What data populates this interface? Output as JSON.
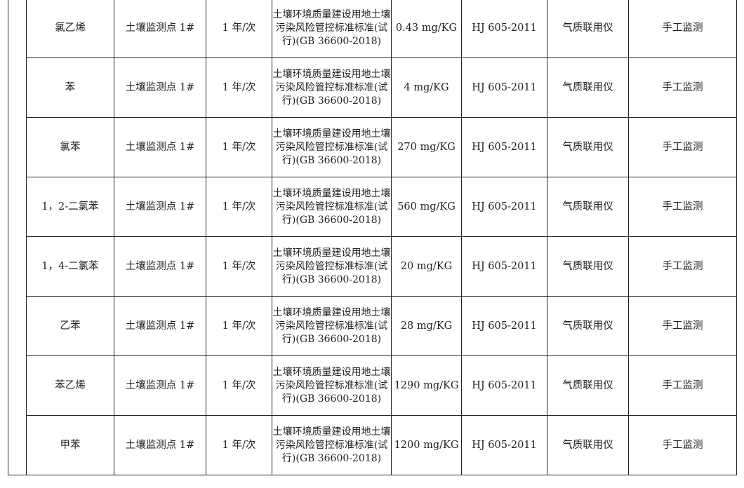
{
  "table": {
    "rows": [
      {
        "pollutant": "氯乙烯",
        "site": "土壤监测点 1#",
        "frequency": "1 年/次",
        "standard": "土壤环境质量建设用地土壤污染风险管控标准标准(试行)(GB 36600-2018)",
        "limit": "0.43 mg/KG",
        "method": "HJ 605-2011",
        "instrument": "气质联用仪",
        "mode": "手工监测"
      },
      {
        "pollutant": "苯",
        "site": "土壤监测点 1#",
        "frequency": "1 年/次",
        "standard": "土壤环境质量建设用地土壤污染风险管控标准标准(试行)(GB 36600-2018)",
        "limit": "4 mg/KG",
        "method": "HJ 605-2011",
        "instrument": "气质联用仪",
        "mode": "手工监测"
      },
      {
        "pollutant": "氯苯",
        "site": "土壤监测点 1#",
        "frequency": "1 年/次",
        "standard": "土壤环境质量建设用地土壤污染风险管控标准标准(试行)(GB 36600-2018)",
        "limit": "270 mg/KG",
        "method": "HJ 605-2011",
        "instrument": "气质联用仪",
        "mode": "手工监测"
      },
      {
        "pollutant": "1，2-二氯苯",
        "site": "土壤监测点 1#",
        "frequency": "1 年/次",
        "standard": "土壤环境质量建设用地土壤污染风险管控标准标准(试行)(GB 36600-2018)",
        "limit": "560 mg/KG",
        "method": "HJ 605-2011",
        "instrument": "气质联用仪",
        "mode": "手工监测"
      },
      {
        "pollutant": "1，4-二氯苯",
        "site": "土壤监测点 1#",
        "frequency": "1 年/次",
        "standard": "土壤环境质量建设用地土壤污染风险管控标准标准(试行)(GB 36600-2018)",
        "limit": "20 mg/KG",
        "method": "HJ 605-2011",
        "instrument": "气质联用仪",
        "mode": "手工监测"
      },
      {
        "pollutant": "乙苯",
        "site": "土壤监测点 1#",
        "frequency": "1 年/次",
        "standard": "土壤环境质量建设用地土壤污染风险管控标准标准(试行)(GB 36600-2018)",
        "limit": "28 mg/KG",
        "method": "HJ 605-2011",
        "instrument": "气质联用仪",
        "mode": "手工监测"
      },
      {
        "pollutant": "苯乙烯",
        "site": "土壤监测点 1#",
        "frequency": "1 年/次",
        "standard": "土壤环境质量建设用地土壤污染风险管控标准标准(试行)(GB 36600-2018)",
        "limit": "1290 mg/KG",
        "method": "HJ 605-2011",
        "instrument": "气质联用仪",
        "mode": "手工监测"
      },
      {
        "pollutant": "甲苯",
        "site": "土壤监测点 1#",
        "frequency": "1 年/次",
        "standard": "土壤环境质量建设用地土壤污染风险管控标准标准(试行)(GB 36600-2018)",
        "limit": "1200 mg/KG",
        "method": "HJ 605-2011",
        "instrument": "气质联用仪",
        "mode": "手工监测"
      }
    ]
  }
}
